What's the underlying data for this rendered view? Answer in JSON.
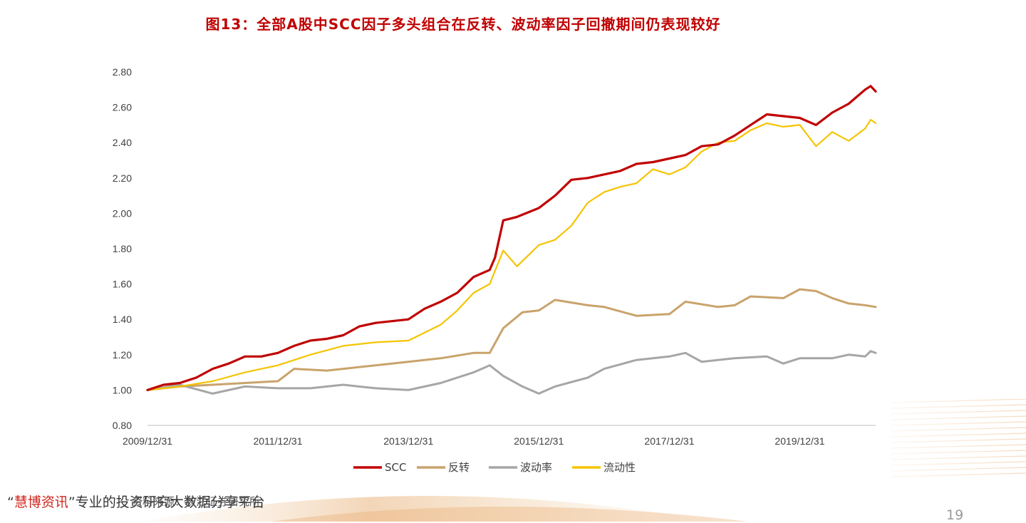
{
  "title": "图13：全部A股中SCC因子多头组合在反转、波动率因子回撤期间仍表现较好",
  "footer": {
    "quote_open": "“",
    "brand": "慧博资讯",
    "quote_close": "”",
    "tagline": "专业的投资研究大数据分享平台",
    "source": "资料来源：长江证券研究所",
    "page_number": "19"
  },
  "colors": {
    "SCC": "#c00000",
    "反转": "#c9a36b",
    "波动率": "#a6a6a6",
    "流动性": "#f5c400",
    "title": "#c00000"
  },
  "chart_data": {
    "type": "line",
    "title": "图13：全部A股中SCC因子多头组合在反转、波动率因子回撤期间仍表现较好",
    "xlabel": "",
    "ylabel": "",
    "x_ticks": [
      "2009/12/31",
      "2011/12/31",
      "2013/12/31",
      "2015/12/31",
      "2017/12/31",
      "2019/12/31"
    ],
    "y_ticks": [
      "0.80",
      "1.00",
      "1.20",
      "1.40",
      "1.60",
      "1.80",
      "2.00",
      "2.20",
      "2.40",
      "2.60",
      "2.80"
    ],
    "ylim": [
      0.8,
      2.8
    ],
    "xlim": [
      "2009-12-31",
      "2021-02-28"
    ],
    "grid": false,
    "legend_position": "bottom",
    "series": [
      {
        "name": "SCC",
        "points": [
          [
            "2009-12-31",
            1.0
          ],
          [
            "2010-03-31",
            1.03
          ],
          [
            "2010-06-30",
            1.04
          ],
          [
            "2010-09-30",
            1.07
          ],
          [
            "2010-12-31",
            1.12
          ],
          [
            "2011-03-31",
            1.15
          ],
          [
            "2011-06-30",
            1.19
          ],
          [
            "2011-09-30",
            1.19
          ],
          [
            "2011-12-31",
            1.21
          ],
          [
            "2012-03-31",
            1.25
          ],
          [
            "2012-06-30",
            1.28
          ],
          [
            "2012-09-30",
            1.29
          ],
          [
            "2012-12-31",
            1.31
          ],
          [
            "2013-03-31",
            1.36
          ],
          [
            "2013-06-30",
            1.38
          ],
          [
            "2013-09-30",
            1.39
          ],
          [
            "2013-12-31",
            1.4
          ],
          [
            "2014-03-31",
            1.46
          ],
          [
            "2014-06-30",
            1.5
          ],
          [
            "2014-09-30",
            1.55
          ],
          [
            "2014-12-31",
            1.64
          ],
          [
            "2015-03-31",
            1.68
          ],
          [
            "2015-04-30",
            1.75
          ],
          [
            "2015-06-15",
            1.96
          ],
          [
            "2015-08-31",
            1.98
          ],
          [
            "2015-12-31",
            2.03
          ],
          [
            "2016-03-31",
            2.1
          ],
          [
            "2016-06-30",
            2.19
          ],
          [
            "2016-09-30",
            2.2
          ],
          [
            "2016-12-31",
            2.22
          ],
          [
            "2017-03-31",
            2.24
          ],
          [
            "2017-06-30",
            2.28
          ],
          [
            "2017-09-30",
            2.29
          ],
          [
            "2017-12-31",
            2.31
          ],
          [
            "2018-03-31",
            2.33
          ],
          [
            "2018-06-30",
            2.38
          ],
          [
            "2018-09-30",
            2.39
          ],
          [
            "2018-12-31",
            2.44
          ],
          [
            "2019-03-31",
            2.5
          ],
          [
            "2019-06-30",
            2.56
          ],
          [
            "2019-09-30",
            2.55
          ],
          [
            "2019-12-31",
            2.54
          ],
          [
            "2020-03-31",
            2.5
          ],
          [
            "2020-06-30",
            2.57
          ],
          [
            "2020-09-30",
            2.62
          ],
          [
            "2020-12-31",
            2.7
          ],
          [
            "2021-01-31",
            2.72
          ],
          [
            "2021-02-28",
            2.69
          ]
        ]
      },
      {
        "name": "反转",
        "points": [
          [
            "2009-12-31",
            1.0
          ],
          [
            "2010-06-30",
            1.02
          ],
          [
            "2010-12-31",
            1.03
          ],
          [
            "2011-06-30",
            1.04
          ],
          [
            "2011-12-31",
            1.05
          ],
          [
            "2012-03-31",
            1.12
          ],
          [
            "2012-09-30",
            1.11
          ],
          [
            "2012-12-31",
            1.12
          ],
          [
            "2013-06-30",
            1.14
          ],
          [
            "2013-12-31",
            1.16
          ],
          [
            "2014-06-30",
            1.18
          ],
          [
            "2014-12-31",
            1.21
          ],
          [
            "2015-03-31",
            1.21
          ],
          [
            "2015-06-15",
            1.35
          ],
          [
            "2015-09-30",
            1.44
          ],
          [
            "2015-12-31",
            1.45
          ],
          [
            "2016-03-31",
            1.51
          ],
          [
            "2016-09-30",
            1.48
          ],
          [
            "2016-12-31",
            1.47
          ],
          [
            "2017-06-30",
            1.42
          ],
          [
            "2017-12-31",
            1.43
          ],
          [
            "2018-03-31",
            1.5
          ],
          [
            "2018-09-30",
            1.47
          ],
          [
            "2018-12-31",
            1.48
          ],
          [
            "2019-03-31",
            1.53
          ],
          [
            "2019-09-30",
            1.52
          ],
          [
            "2019-12-31",
            1.57
          ],
          [
            "2020-03-31",
            1.56
          ],
          [
            "2020-06-30",
            1.52
          ],
          [
            "2020-09-30",
            1.49
          ],
          [
            "2020-12-31",
            1.48
          ],
          [
            "2021-02-28",
            1.47
          ]
        ]
      },
      {
        "name": "波动率",
        "points": [
          [
            "2009-12-31",
            1.0
          ],
          [
            "2010-06-30",
            1.03
          ],
          [
            "2010-12-31",
            0.98
          ],
          [
            "2011-06-30",
            1.02
          ],
          [
            "2011-12-31",
            1.01
          ],
          [
            "2012-06-30",
            1.01
          ],
          [
            "2012-12-31",
            1.03
          ],
          [
            "2013-06-30",
            1.01
          ],
          [
            "2013-12-31",
            1.0
          ],
          [
            "2014-06-30",
            1.04
          ],
          [
            "2014-12-31",
            1.1
          ],
          [
            "2015-03-31",
            1.14
          ],
          [
            "2015-06-15",
            1.08
          ],
          [
            "2015-09-30",
            1.02
          ],
          [
            "2015-12-31",
            0.98
          ],
          [
            "2016-03-31",
            1.02
          ],
          [
            "2016-09-30",
            1.07
          ],
          [
            "2016-12-31",
            1.12
          ],
          [
            "2017-06-30",
            1.17
          ],
          [
            "2017-12-31",
            1.19
          ],
          [
            "2018-03-31",
            1.21
          ],
          [
            "2018-06-30",
            1.16
          ],
          [
            "2018-12-31",
            1.18
          ],
          [
            "2019-06-30",
            1.19
          ],
          [
            "2019-09-30",
            1.15
          ],
          [
            "2019-12-31",
            1.18
          ],
          [
            "2020-06-30",
            1.18
          ],
          [
            "2020-09-30",
            1.2
          ],
          [
            "2020-12-31",
            1.19
          ],
          [
            "2021-01-31",
            1.22
          ],
          [
            "2021-02-28",
            1.21
          ]
        ]
      },
      {
        "name": "流动性",
        "points": [
          [
            "2009-12-31",
            1.0
          ],
          [
            "2010-06-30",
            1.02
          ],
          [
            "2010-12-31",
            1.05
          ],
          [
            "2011-06-30",
            1.1
          ],
          [
            "2011-12-31",
            1.14
          ],
          [
            "2012-06-30",
            1.2
          ],
          [
            "2012-12-31",
            1.25
          ],
          [
            "2013-06-30",
            1.27
          ],
          [
            "2013-12-31",
            1.28
          ],
          [
            "2014-06-30",
            1.37
          ],
          [
            "2014-09-30",
            1.45
          ],
          [
            "2014-12-31",
            1.55
          ],
          [
            "2015-03-31",
            1.6
          ],
          [
            "2015-06-15",
            1.79
          ],
          [
            "2015-08-31",
            1.7
          ],
          [
            "2015-12-31",
            1.82
          ],
          [
            "2016-03-31",
            1.85
          ],
          [
            "2016-06-30",
            1.93
          ],
          [
            "2016-09-30",
            2.06
          ],
          [
            "2016-12-31",
            2.12
          ],
          [
            "2017-03-31",
            2.15
          ],
          [
            "2017-06-30",
            2.17
          ],
          [
            "2017-09-30",
            2.25
          ],
          [
            "2017-12-31",
            2.22
          ],
          [
            "2018-03-31",
            2.26
          ],
          [
            "2018-06-30",
            2.35
          ],
          [
            "2018-09-30",
            2.4
          ],
          [
            "2018-12-31",
            2.41
          ],
          [
            "2019-03-31",
            2.47
          ],
          [
            "2019-06-30",
            2.51
          ],
          [
            "2019-09-30",
            2.49
          ],
          [
            "2019-12-31",
            2.5
          ],
          [
            "2020-03-31",
            2.38
          ],
          [
            "2020-06-30",
            2.46
          ],
          [
            "2020-09-30",
            2.41
          ],
          [
            "2020-12-31",
            2.48
          ],
          [
            "2021-01-31",
            2.53
          ],
          [
            "2021-02-28",
            2.51
          ]
        ]
      }
    ]
  }
}
